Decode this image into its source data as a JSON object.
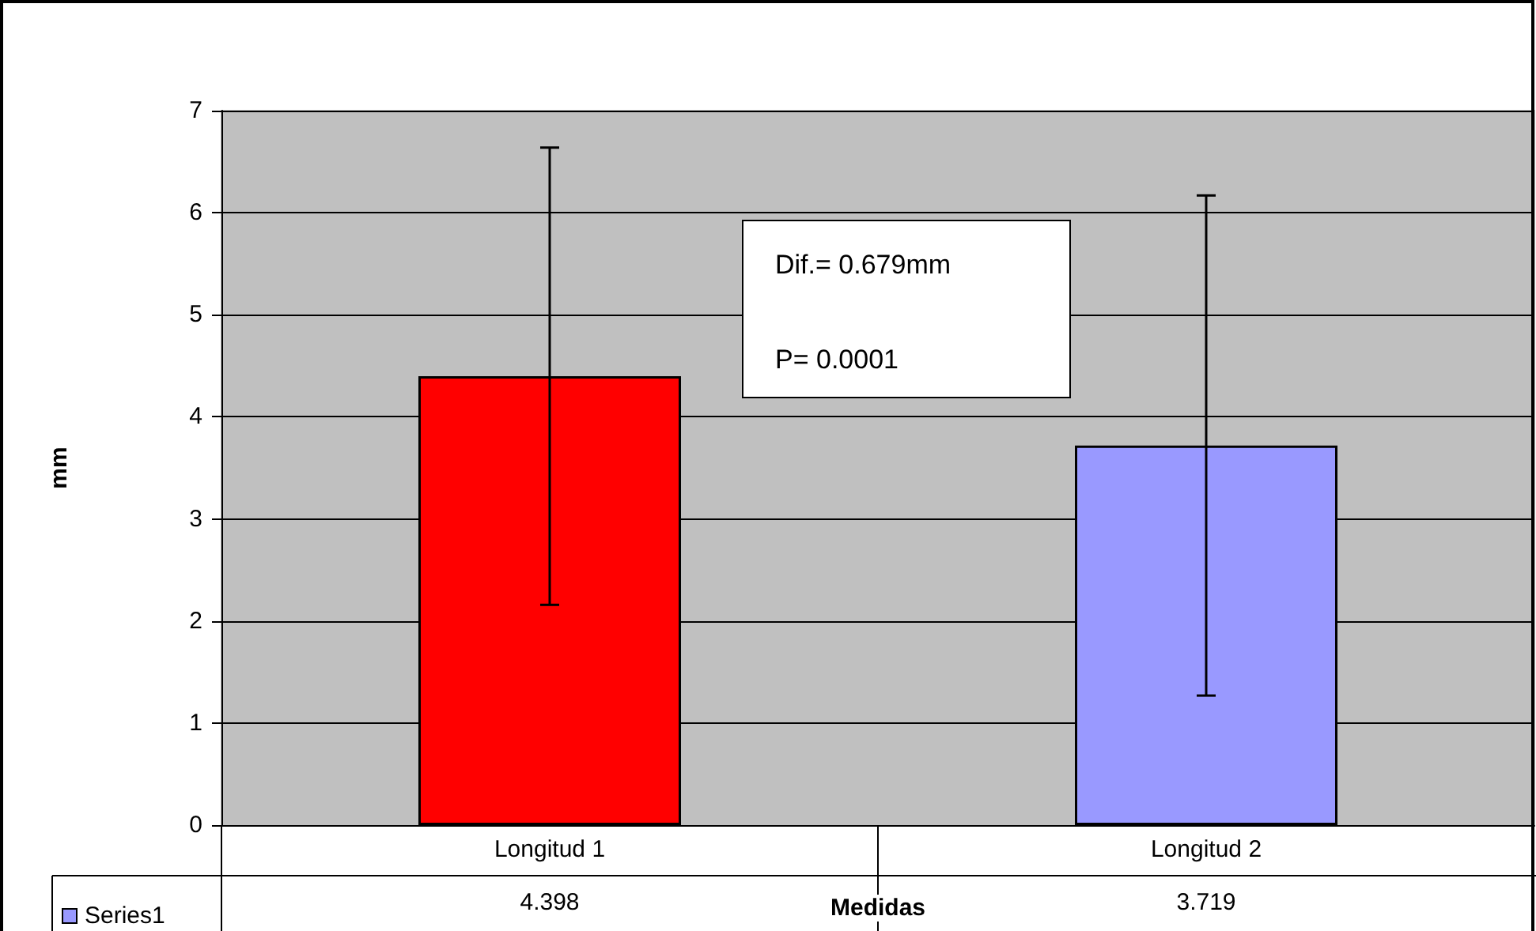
{
  "chart_data": {
    "type": "bar",
    "xlabel": "Medidas",
    "ylabel": "mm",
    "categories": [
      "Longitud 1",
      "Longitud 2"
    ],
    "series": [
      {
        "name": "Series1",
        "color": "#9999ff",
        "colors": [
          "#ff0000",
          "#9999ff"
        ],
        "values": [
          4.398,
          3.719
        ],
        "errors": [
          2.24,
          2.45
        ]
      }
    ],
    "ylim": [
      0,
      7
    ],
    "yticks": [
      0,
      1,
      2,
      3,
      4,
      5,
      6,
      7
    ],
    "grid": "y",
    "legend": "bottom left",
    "data_labels": true,
    "annotations": [
      "Dif.= 0.679mm",
      "P= 0.0001"
    ]
  }
}
